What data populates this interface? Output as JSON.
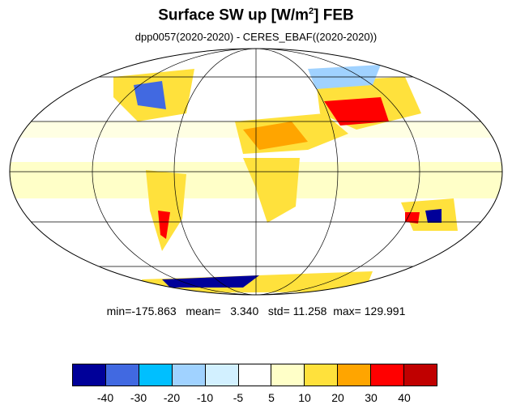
{
  "title": {
    "main": "Surface SW up [W/m",
    "sup": "2",
    "suffix": "]  FEB"
  },
  "subtitle": "dpp0057(2020-2020) - CERES_EBAF((2020-2020))",
  "stats": {
    "min_label": "min=",
    "min": "-175.863",
    "mean_label": "mean=",
    "mean": "3.340",
    "std_label": "std=",
    "std": "11.258",
    "max_label": "max=",
    "max": "129.991"
  },
  "colorbar": {
    "colors": [
      "#000099",
      "#4169e1",
      "#00bfff",
      "#a0d2ff",
      "#d2f0ff",
      "#ffffff",
      "#ffffc8",
      "#ffe13c",
      "#ffa500",
      "#ff0000",
      "#c00000"
    ],
    "tick_labels": [
      "-40",
      "-30",
      "-20",
      "-10",
      "-5",
      "5",
      "10",
      "20",
      "30",
      "40"
    ]
  },
  "map": {
    "projection": "Mollweide",
    "lon_grid_deg": [
      -120,
      -60,
      0,
      60,
      120
    ],
    "lat_grid_deg": [
      -60,
      -30,
      0,
      30,
      60
    ]
  }
}
